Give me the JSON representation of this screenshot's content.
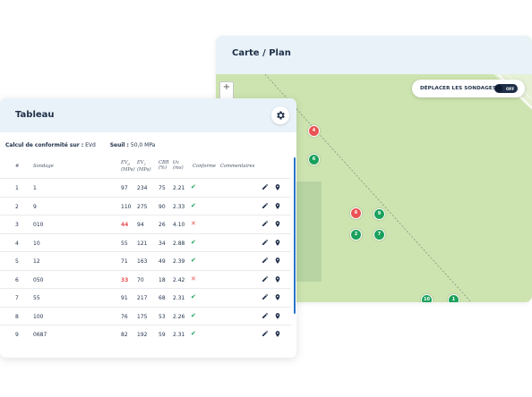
{
  "map": {
    "title": "Carte / Plan",
    "zoom_in_label": "+",
    "move_toggle": {
      "label": "DÉPLACER LES SONDAGES",
      "state": "OFF"
    },
    "markers": [
      {
        "label": "3",
        "status": "ok"
      },
      {
        "label": "4",
        "status": "fail"
      },
      {
        "label": "6",
        "status": "ok"
      },
      {
        "label": "6",
        "status": "fail"
      },
      {
        "label": "9",
        "status": "ok"
      },
      {
        "label": "2",
        "status": "ok"
      },
      {
        "label": "7",
        "status": "ok"
      },
      {
        "label": "10",
        "status": "ok"
      },
      {
        "label": "1",
        "status": "ok"
      },
      {
        "label": "12",
        "status": "ok"
      },
      {
        "label": "11",
        "status": "ok"
      }
    ]
  },
  "table": {
    "title": "Tableau",
    "conformity_label": "Calcul de conformité sur :",
    "conformity_value": "EVd",
    "threshold_label": "Seuil :",
    "threshold_value": "50,0 MPa",
    "columns": {
      "num": "#",
      "sondage": "Sondage",
      "ev2_1": "EV",
      "ev2_2": "(MPa)",
      "ev2b_1": "EV",
      "ev2b_2": "(MPa)",
      "cbr_1": "CBR",
      "cbr_2": "(%)",
      "tv_1": "t/v",
      "tv_2": "(ms)",
      "conforme": "Conforme",
      "commentaires": "Commentaires"
    },
    "rows": [
      {
        "num": "1",
        "sondage": "1",
        "ev1": "97",
        "ev2": "234",
        "cbr": "75",
        "tv": "2.21",
        "conforme": true
      },
      {
        "num": "2",
        "sondage": "9",
        "ev1": "110",
        "ev2": "275",
        "cbr": "90",
        "tv": "2.33",
        "conforme": true
      },
      {
        "num": "3",
        "sondage": "010",
        "ev1": "44",
        "ev2": "94",
        "cbr": "26",
        "tv": "4.10",
        "conforme": false
      },
      {
        "num": "4",
        "sondage": "10",
        "ev1": "55",
        "ev2": "121",
        "cbr": "34",
        "tv": "2.88",
        "conforme": true
      },
      {
        "num": "5",
        "sondage": "12",
        "ev1": "71",
        "ev2": "163",
        "cbr": "49",
        "tv": "2.39",
        "conforme": true
      },
      {
        "num": "6",
        "sondage": "050",
        "ev1": "33",
        "ev2": "70",
        "cbr": "18",
        "tv": "2.42",
        "conforme": false
      },
      {
        "num": "7",
        "sondage": "55",
        "ev1": "91",
        "ev2": "217",
        "cbr": "68",
        "tv": "2.31",
        "conforme": true
      },
      {
        "num": "8",
        "sondage": "100",
        "ev1": "76",
        "ev2": "175",
        "cbr": "53",
        "tv": "2.26",
        "conforme": true
      },
      {
        "num": "9",
        "sondage": "0687",
        "ev1": "82",
        "ev2": "192",
        "cbr": "59",
        "tv": "2.31",
        "conforme": true
      }
    ]
  },
  "colors": {
    "ok": "#1aa15c",
    "fail": "#ea5354",
    "header_bg": "#e9f2f8",
    "map_green": "#c9e2ab",
    "text_dark": "#1f2f48",
    "scroll_accent": "#2a73c9"
  },
  "icons": {
    "settings": "gear-icon",
    "edit": "pencil-icon",
    "locate": "map-pin-icon",
    "ok": "check-icon",
    "fail": "cross-icon"
  }
}
